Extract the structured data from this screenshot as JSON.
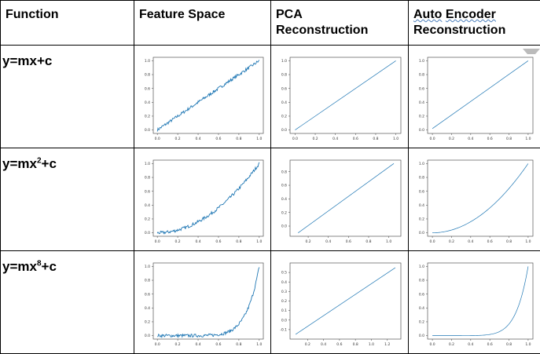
{
  "headers": {
    "function": "Function",
    "feature_space": "Feature Space",
    "pca_line1": "PCA",
    "pca_line2": "Reconstruction",
    "ae_line1_a": "Auto",
    "ae_line1_b": "Encoder",
    "ae_line2": "Reconstruction"
  },
  "rows": [
    {
      "fn_base": "y=mx",
      "fn_exp": "",
      "fn_tail": "+c"
    },
    {
      "fn_base": "y=mx",
      "fn_exp": "2",
      "fn_tail": "+c"
    },
    {
      "fn_base": "y=mx",
      "fn_exp": "8",
      "fn_tail": "+c"
    }
  ],
  "colors": {
    "line": "#1f77b4",
    "axis": "#555555"
  },
  "chart_data": [
    {
      "id": "r1-feature",
      "type": "line",
      "noisy": true,
      "func": "linear",
      "power": 1,
      "xlim": [
        -0.04,
        1.04
      ],
      "ylim": [
        -0.05,
        1.05
      ],
      "xticks": [
        "0.0",
        "0.2",
        "0.4",
        "0.6",
        "0.8",
        "1.0"
      ],
      "xtickvals": [
        0,
        0.2,
        0.4,
        0.6,
        0.8,
        1.0
      ],
      "yticks": [
        "0.0",
        "0.2",
        "0.4",
        "0.6",
        "0.8",
        "1.0"
      ],
      "ytickvals": [
        0,
        0.2,
        0.4,
        0.6,
        0.8,
        1.0
      ]
    },
    {
      "id": "r1-pca",
      "type": "line",
      "noisy": false,
      "func": "line2pt",
      "p0": [
        0,
        0
      ],
      "p1": [
        1,
        1
      ],
      "xlim": [
        -0.05,
        1.05
      ],
      "ylim": [
        -0.05,
        1.05
      ],
      "xticks": [
        "0.0",
        "0.2",
        "0.4",
        "0.6",
        "0.8",
        "1.0"
      ],
      "xtickvals": [
        0,
        0.2,
        0.4,
        0.6,
        0.8,
        1.0
      ],
      "yticks": [
        "0.0",
        "0.2",
        "0.4",
        "0.6",
        "0.8",
        "1.0"
      ],
      "ytickvals": [
        0,
        0.2,
        0.4,
        0.6,
        0.8,
        1.0
      ]
    },
    {
      "id": "r1-ae",
      "type": "line",
      "noisy": false,
      "func": "line2pt",
      "p0": [
        0,
        0.02
      ],
      "p1": [
        1,
        1
      ],
      "xlim": [
        -0.05,
        1.05
      ],
      "ylim": [
        -0.05,
        1.05
      ],
      "xticks": [
        "0.0",
        "0.2",
        "0.4",
        "0.6",
        "0.8",
        "1.0"
      ],
      "xtickvals": [
        0,
        0.2,
        0.4,
        0.6,
        0.8,
        1.0
      ],
      "yticks": [
        "0.0",
        "0.2",
        "0.4",
        "0.6",
        "0.8",
        "1.0"
      ],
      "ytickvals": [
        0,
        0.2,
        0.4,
        0.6,
        0.8,
        1.0
      ]
    },
    {
      "id": "r2-feature",
      "type": "line",
      "noisy": true,
      "func": "power",
      "power": 2,
      "xlim": [
        -0.04,
        1.04
      ],
      "ylim": [
        -0.05,
        1.05
      ],
      "xticks": [
        "0.0",
        "0.2",
        "0.4",
        "0.6",
        "0.8",
        "1.0"
      ],
      "xtickvals": [
        0,
        0.2,
        0.4,
        0.6,
        0.8,
        1.0
      ],
      "yticks": [
        "0.0",
        "0.2",
        "0.4",
        "0.6",
        "0.8",
        "1.0"
      ],
      "ytickvals": [
        0,
        0.2,
        0.4,
        0.6,
        0.8,
        1.0
      ]
    },
    {
      "id": "r2-pca",
      "type": "line",
      "noisy": false,
      "func": "line2pt",
      "p0": [
        0.1,
        -0.1
      ],
      "p1": [
        1.05,
        0.92
      ],
      "xlim": [
        0.02,
        1.12
      ],
      "ylim": [
        -0.15,
        0.97
      ],
      "xticks": [
        "0.2",
        "0.4",
        "0.6",
        "0.8",
        "1.0"
      ],
      "xtickvals": [
        0.2,
        0.4,
        0.6,
        0.8,
        1.0
      ],
      "yticks": [
        "0.0",
        "0.2",
        "0.4",
        "0.6",
        "0.8"
      ],
      "ytickvals": [
        0,
        0.2,
        0.4,
        0.6,
        0.8
      ]
    },
    {
      "id": "r2-ae",
      "type": "line",
      "noisy": false,
      "func": "power",
      "power": 2,
      "xlim": [
        -0.05,
        1.05
      ],
      "ylim": [
        -0.05,
        1.05
      ],
      "xticks": [
        "0.0",
        "0.2",
        "0.4",
        "0.6",
        "0.8",
        "1.0"
      ],
      "xtickvals": [
        0,
        0.2,
        0.4,
        0.6,
        0.8,
        1.0
      ],
      "yticks": [
        "0.0",
        "0.2",
        "0.4",
        "0.6",
        "0.8",
        "1.0"
      ],
      "ytickvals": [
        0,
        0.2,
        0.4,
        0.6,
        0.8,
        1.0
      ]
    },
    {
      "id": "r3-feature",
      "type": "line",
      "noisy": true,
      "func": "power",
      "power": 8,
      "xlim": [
        -0.04,
        1.04
      ],
      "ylim": [
        -0.05,
        1.05
      ],
      "xticks": [
        "0.0",
        "0.2",
        "0.4",
        "0.6",
        "0.8",
        "1.0"
      ],
      "xtickvals": [
        0,
        0.2,
        0.4,
        0.6,
        0.8,
        1.0
      ],
      "yticks": [
        "0.0",
        "0.2",
        "0.4",
        "0.6",
        "0.8",
        "1.0"
      ],
      "ytickvals": [
        0,
        0.2,
        0.4,
        0.6,
        0.8,
        1.0
      ]
    },
    {
      "id": "r3-pca",
      "type": "line",
      "noisy": false,
      "func": "line2pt",
      "p0": [
        0.05,
        -0.15
      ],
      "p1": [
        1.3,
        0.55
      ],
      "xlim": [
        -0.02,
        1.37
      ],
      "ylim": [
        -0.2,
        0.6
      ],
      "xticks": [
        "0.2",
        "0.4",
        "0.6",
        "0.8",
        "1.0",
        "1.2"
      ],
      "xtickvals": [
        0.2,
        0.4,
        0.6,
        0.8,
        1.0,
        1.2
      ],
      "yticks": [
        "-0.1",
        "0.0",
        "0.1",
        "0.2",
        "0.3",
        "0.4",
        "0.5"
      ],
      "ytickvals": [
        -0.1,
        0,
        0.1,
        0.2,
        0.3,
        0.4,
        0.5
      ]
    },
    {
      "id": "r3-ae",
      "type": "line",
      "noisy": false,
      "func": "power",
      "power": 8,
      "xlim": [
        -0.05,
        1.05
      ],
      "ylim": [
        -0.05,
        1.05
      ],
      "xticks": [
        "0.0",
        "0.2",
        "0.4",
        "0.6",
        "0.8",
        "1.0"
      ],
      "xtickvals": [
        0,
        0.2,
        0.4,
        0.6,
        0.8,
        1.0
      ],
      "yticks": [
        "0.0",
        "0.2",
        "0.4",
        "0.6",
        "0.8",
        "1.0"
      ],
      "ytickvals": [
        0,
        0.2,
        0.4,
        0.6,
        0.8,
        1.0
      ]
    }
  ]
}
